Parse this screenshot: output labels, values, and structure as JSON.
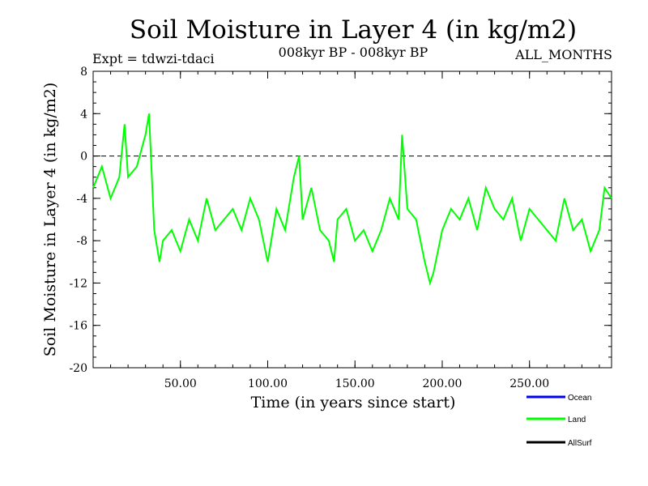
{
  "chart_data": {
    "type": "line",
    "title": "Soil Moisture in Layer 4 (in kg/m2)",
    "experiment": "Expt = tdwzi-tdaci",
    "period": "008kyr BP - 008kyr BP",
    "months": "ALL_MONTHS",
    "xlabel": "Time (in years since start)",
    "ylabel": "Soil Moisture in Layer 4 (in kg/m2)",
    "xlim": [
      0,
      297
    ],
    "ylim": [
      -20,
      8
    ],
    "x_ticks": [
      50,
      100,
      150,
      200,
      250
    ],
    "x_tick_labels": [
      "50.00",
      "100.00",
      "150.00",
      "200.00",
      "250.00"
    ],
    "y_ticks": [
      -20,
      -16,
      -12,
      -8,
      -4,
      0,
      4,
      8
    ],
    "y_tick_labels": [
      "-20",
      "-16",
      "-12",
      "-8",
      "-4",
      "0",
      "4",
      "8"
    ],
    "reference_line": 0,
    "grid": false,
    "legend_position": "bottom-right",
    "series": [
      {
        "name": "Ocean",
        "color": "#0000ff",
        "values": []
      },
      {
        "name": "Land",
        "color": "#00ff00",
        "x": [
          0,
          5,
          10,
          15,
          18,
          20,
          25,
          30,
          32,
          35,
          38,
          40,
          45,
          50,
          55,
          60,
          65,
          70,
          75,
          80,
          85,
          90,
          95,
          100,
          105,
          110,
          115,
          118,
          120,
          125,
          130,
          135,
          138,
          140,
          145,
          150,
          155,
          160,
          165,
          170,
          175,
          177,
          180,
          185,
          190,
          193,
          195,
          200,
          205,
          210,
          215,
          220,
          225,
          230,
          235,
          240,
          245,
          250,
          255,
          260,
          265,
          270,
          275,
          280,
          285,
          290,
          293,
          297
        ],
        "values": [
          -3,
          -1,
          -4,
          -2,
          3,
          -2,
          -1,
          2,
          4,
          -7,
          -10,
          -8,
          -7,
          -9,
          -6,
          -8,
          -4,
          -7,
          -6,
          -5,
          -7,
          -4,
          -6,
          -10,
          -5,
          -7,
          -2,
          0,
          -6,
          -3,
          -7,
          -8,
          -10,
          -6,
          -5,
          -8,
          -7,
          -9,
          -7,
          -4,
          -6,
          2,
          -5,
          -6,
          -10,
          -12,
          -11,
          -7,
          -5,
          -6,
          -4,
          -7,
          -3,
          -5,
          -6,
          -4,
          -8,
          -5,
          -6,
          -7,
          -8,
          -4,
          -7,
          -6,
          -9,
          -7,
          -3,
          -4
        ]
      },
      {
        "name": "AllSurf",
        "color": "#000000",
        "values": []
      }
    ]
  }
}
